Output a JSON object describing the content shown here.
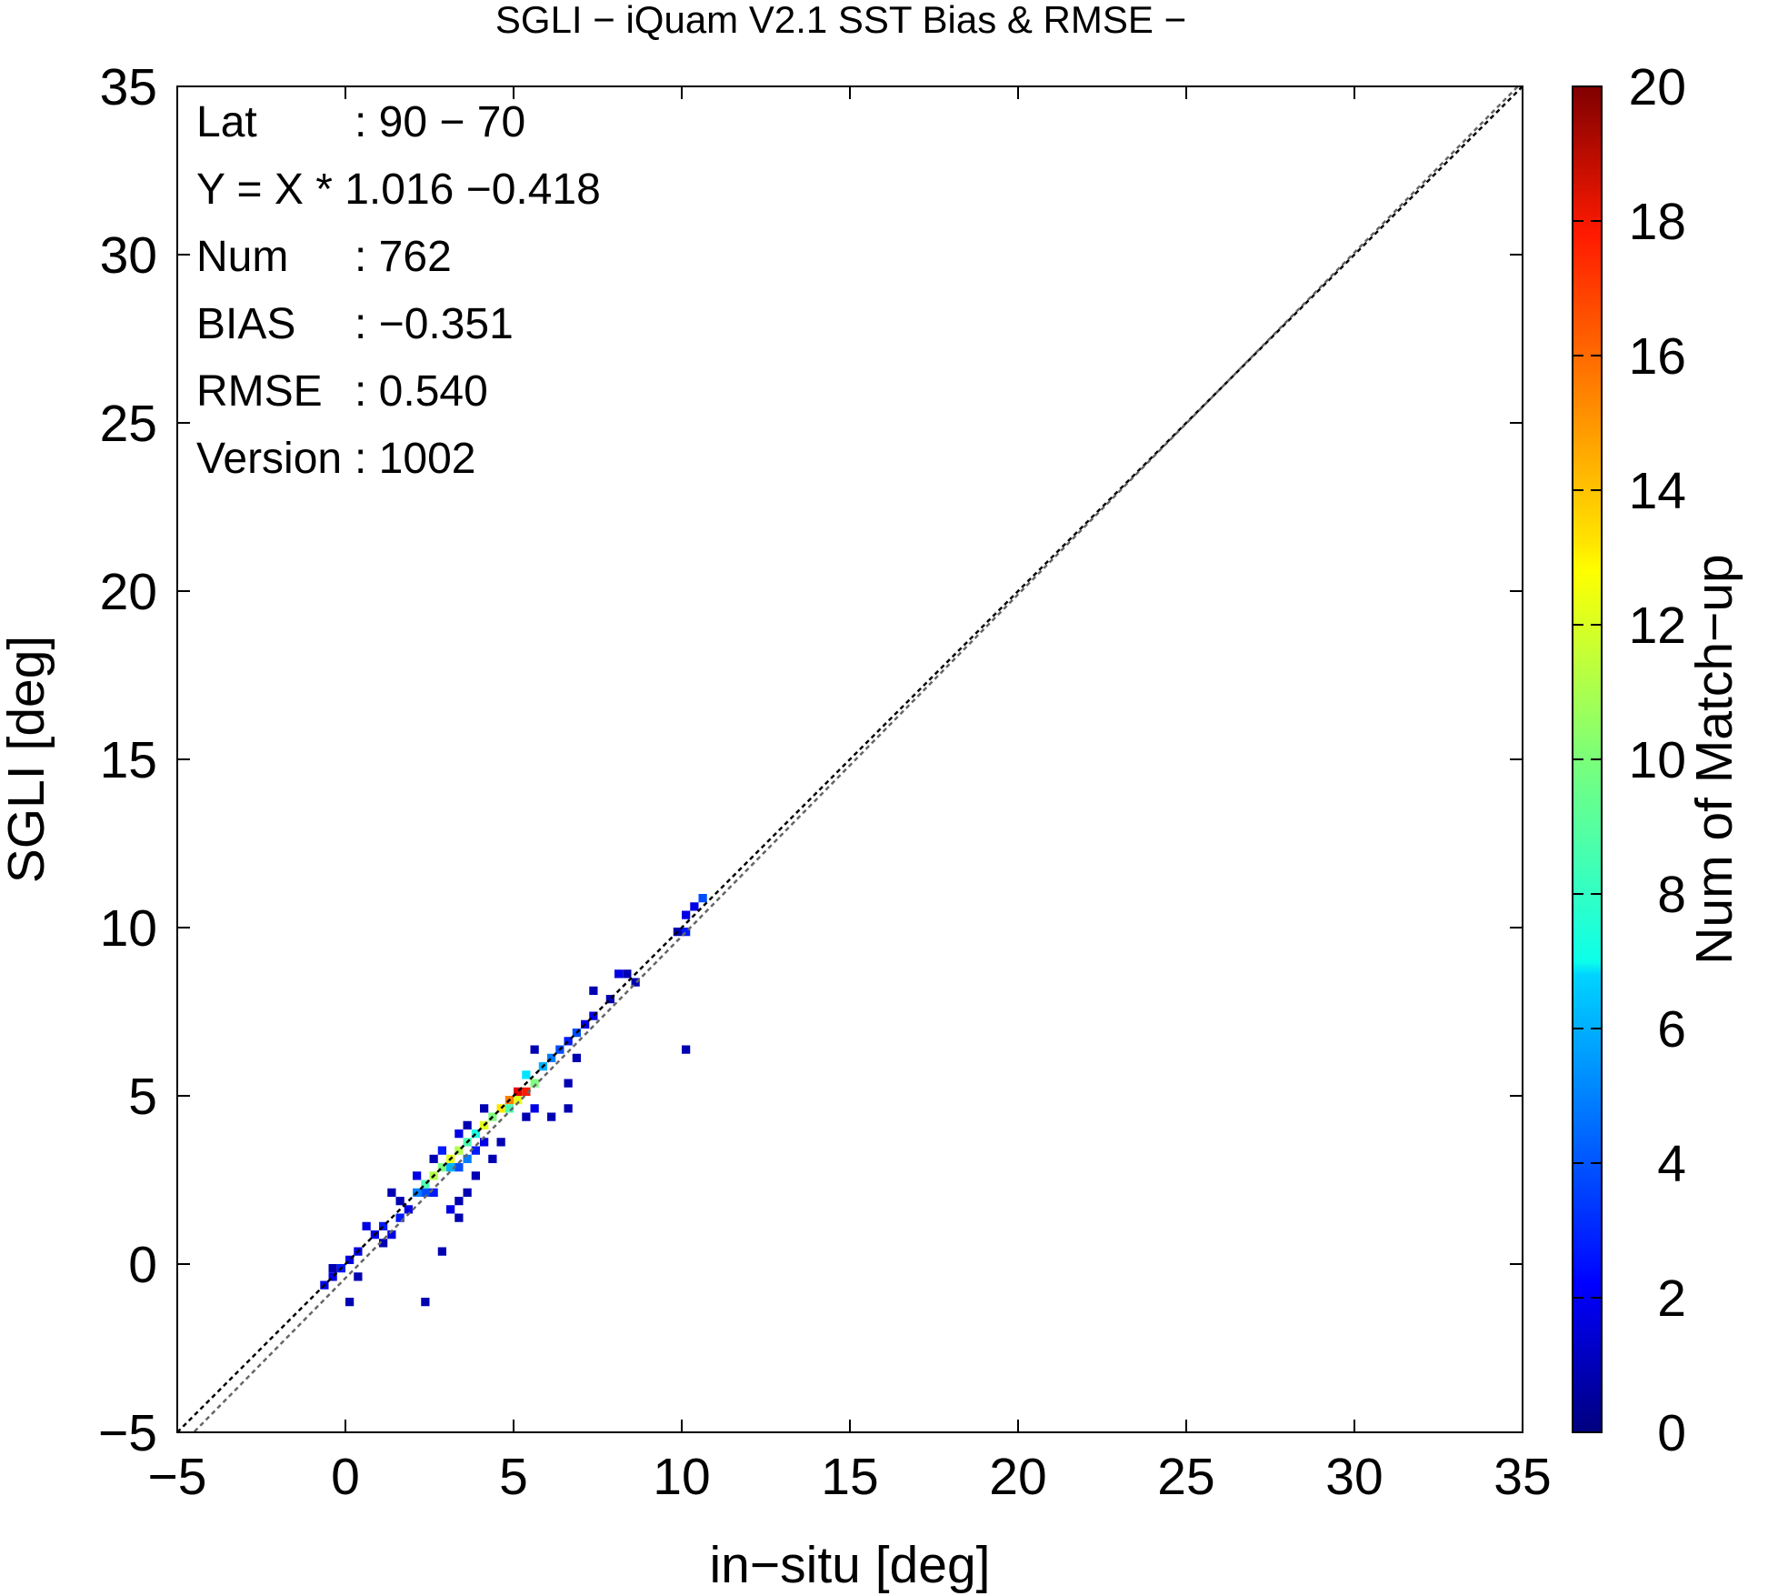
{
  "chart_data": {
    "type": "heatmap",
    "title": "SGLI − iQuam V2.1 SST Bias & RMSE  −",
    "xlabel": "in−situ [deg]",
    "ylabel": "SGLI [deg]",
    "xlim": [
      -5,
      35
    ],
    "ylim": [
      -5,
      35
    ],
    "xticks": [
      "−5",
      "0",
      "5",
      "10",
      "15",
      "20",
      "25",
      "30",
      "35"
    ],
    "yticks": [
      "−5",
      "0",
      "5",
      "10",
      "15",
      "20",
      "25",
      "30",
      "35"
    ],
    "grid": false,
    "colorbar": {
      "label": "Num of Match−up",
      "range": [
        0,
        20
      ],
      "ticks": [
        "0",
        "2",
        "4",
        "6",
        "8",
        "10",
        "12",
        "14",
        "16",
        "18",
        "20"
      ],
      "colormap": "jet"
    },
    "stats": [
      {
        "label": "Lat",
        "value": ": 90 − 70"
      },
      {
        "label": "Y = X * 1.016 −0.418",
        "value": ""
      },
      {
        "label": "Num",
        "value": ": 762"
      },
      {
        "label": "BIAS",
        "value": ": −0.351"
      },
      {
        "label": "RMSE",
        "value": ": 0.540"
      },
      {
        "label": "Version",
        "value": ": 1002"
      }
    ],
    "reference_lines": [
      {
        "name": "one-to-one",
        "slope": 1,
        "intercept": 0,
        "color": "#000000"
      },
      {
        "name": "regression",
        "slope": 1.016,
        "intercept": -0.418,
        "color": "#666666"
      }
    ],
    "cell_size": 0.25,
    "cells": [
      {
        "x": -0.75,
        "y": -0.75,
        "count": 2
      },
      {
        "x": -0.5,
        "y": -0.5,
        "count": 2
      },
      {
        "x": -0.25,
        "y": -0.25,
        "count": 3
      },
      {
        "x": 0,
        "y": 0,
        "count": 2
      },
      {
        "x": -0.5,
        "y": -0.25,
        "count": 1
      },
      {
        "x": 0.25,
        "y": 0.25,
        "count": 2
      },
      {
        "x": 0.25,
        "y": -0.5,
        "count": 1
      },
      {
        "x": 0,
        "y": -1.25,
        "count": 1
      },
      {
        "x": 0.75,
        "y": 0.75,
        "count": 2
      },
      {
        "x": 1,
        "y": 1,
        "count": 3
      },
      {
        "x": 1,
        "y": 0.5,
        "count": 1
      },
      {
        "x": 1.25,
        "y": 0.75,
        "count": 2
      },
      {
        "x": 1.5,
        "y": 1.25,
        "count": 3
      },
      {
        "x": 1.75,
        "y": 1.5,
        "count": 2
      },
      {
        "x": 1.5,
        "y": 1.75,
        "count": 1
      },
      {
        "x": 2,
        "y": 2,
        "count": 5
      },
      {
        "x": 2.25,
        "y": 2.25,
        "count": 9
      },
      {
        "x": 2.5,
        "y": 2.5,
        "count": 11
      },
      {
        "x": 2.75,
        "y": 2.75,
        "count": 10
      },
      {
        "x": 2.25,
        "y": 2,
        "count": 4
      },
      {
        "x": 2,
        "y": 2.5,
        "count": 2
      },
      {
        "x": 2.5,
        "y": 2,
        "count": 3
      },
      {
        "x": 3,
        "y": 3,
        "count": 12
      },
      {
        "x": 3.25,
        "y": 3.25,
        "count": 11
      },
      {
        "x": 3.5,
        "y": 3.5,
        "count": 9
      },
      {
        "x": 3,
        "y": 2.75,
        "count": 6
      },
      {
        "x": 2.75,
        "y": 3.25,
        "count": 3
      },
      {
        "x": 3.25,
        "y": 2.75,
        "count": 4
      },
      {
        "x": 3.5,
        "y": 3,
        "count": 5
      },
      {
        "x": 3.75,
        "y": 3.75,
        "count": 8
      },
      {
        "x": 4,
        "y": 4,
        "count": 12
      },
      {
        "x": 4.25,
        "y": 4.25,
        "count": 10
      },
      {
        "x": 3.75,
        "y": 3.25,
        "count": 3
      },
      {
        "x": 4,
        "y": 3.5,
        "count": 2
      },
      {
        "x": 4.5,
        "y": 4.5,
        "count": 13
      },
      {
        "x": 4.75,
        "y": 4.75,
        "count": 15
      },
      {
        "x": 5,
        "y": 5,
        "count": 18
      },
      {
        "x": 5.25,
        "y": 5,
        "count": 17
      },
      {
        "x": 4.75,
        "y": 4.5,
        "count": 9
      },
      {
        "x": 5,
        "y": 4.75,
        "count": 12
      },
      {
        "x": 5.5,
        "y": 5.25,
        "count": 10
      },
      {
        "x": 5.25,
        "y": 5.5,
        "count": 7
      },
      {
        "x": 5.75,
        "y": 5.75,
        "count": 6
      },
      {
        "x": 6,
        "y": 6,
        "count": 5
      },
      {
        "x": 6.25,
        "y": 6.25,
        "count": 4
      },
      {
        "x": 6.5,
        "y": 6.5,
        "count": 3
      },
      {
        "x": 6.75,
        "y": 6.75,
        "count": 4
      },
      {
        "x": 7,
        "y": 7,
        "count": 2
      },
      {
        "x": 7.25,
        "y": 7.25,
        "count": 2
      },
      {
        "x": 7.75,
        "y": 7.75,
        "count": 1
      },
      {
        "x": 8,
        "y": 8.5,
        "count": 2
      },
      {
        "x": 8.25,
        "y": 8.5,
        "count": 1
      },
      {
        "x": 8.5,
        "y": 8.25,
        "count": 1
      },
      {
        "x": 7.25,
        "y": 8,
        "count": 1
      },
      {
        "x": 10,
        "y": 10.25,
        "count": 2
      },
      {
        "x": 10,
        "y": 9.75,
        "count": 3
      },
      {
        "x": 10.25,
        "y": 10.5,
        "count": 2
      },
      {
        "x": 10.5,
        "y": 10.75,
        "count": 4
      },
      {
        "x": 9.75,
        "y": 9.75,
        "count": 1
      },
      {
        "x": 10,
        "y": 6.25,
        "count": 1
      },
      {
        "x": 2.25,
        "y": -1.25,
        "count": 1
      },
      {
        "x": 2.75,
        "y": 0.25,
        "count": 1
      },
      {
        "x": 3,
        "y": 1.5,
        "count": 2
      },
      {
        "x": 3.25,
        "y": 1.75,
        "count": 1
      },
      {
        "x": 3.25,
        "y": 1.25,
        "count": 1
      },
      {
        "x": 3.5,
        "y": 2,
        "count": 1
      },
      {
        "x": 3.75,
        "y": 2.5,
        "count": 1
      },
      {
        "x": 4.5,
        "y": 3.5,
        "count": 1
      },
      {
        "x": 4.25,
        "y": 3,
        "count": 1
      },
      {
        "x": 5.25,
        "y": 4.25,
        "count": 1
      },
      {
        "x": 5.5,
        "y": 4.5,
        "count": 2
      },
      {
        "x": 6,
        "y": 4.25,
        "count": 1
      },
      {
        "x": 6.5,
        "y": 4.5,
        "count": 1
      },
      {
        "x": 6.5,
        "y": 5.25,
        "count": 1
      },
      {
        "x": 6.75,
        "y": 6,
        "count": 1
      },
      {
        "x": 3.25,
        "y": 3.75,
        "count": 2
      },
      {
        "x": 3.5,
        "y": 4,
        "count": 1
      },
      {
        "x": 4,
        "y": 4.5,
        "count": 1
      },
      {
        "x": 5.5,
        "y": 6.25,
        "count": 1
      },
      {
        "x": 2.5,
        "y": 3,
        "count": 1
      },
      {
        "x": 1.25,
        "y": 2,
        "count": 1
      },
      {
        "x": 0.5,
        "y": 1,
        "count": 2
      }
    ]
  }
}
